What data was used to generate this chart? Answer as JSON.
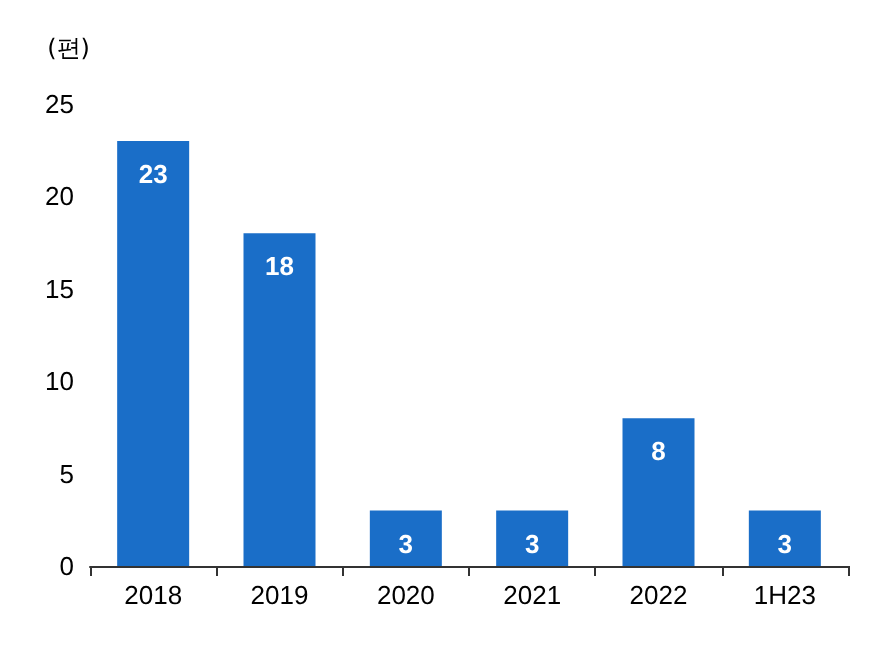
{
  "chart_data": {
    "type": "bar",
    "ylabel": "(편)",
    "categories": [
      "2018",
      "2019",
      "2020",
      "2021",
      "2022",
      "1H23"
    ],
    "values": [
      23,
      18,
      3,
      3,
      8,
      3
    ],
    "color": "#1a6ec8",
    "ylim": [
      0,
      25
    ],
    "yticks": [
      0,
      5,
      10,
      15,
      20,
      25
    ],
    "grid": false,
    "data_labels": true
  }
}
